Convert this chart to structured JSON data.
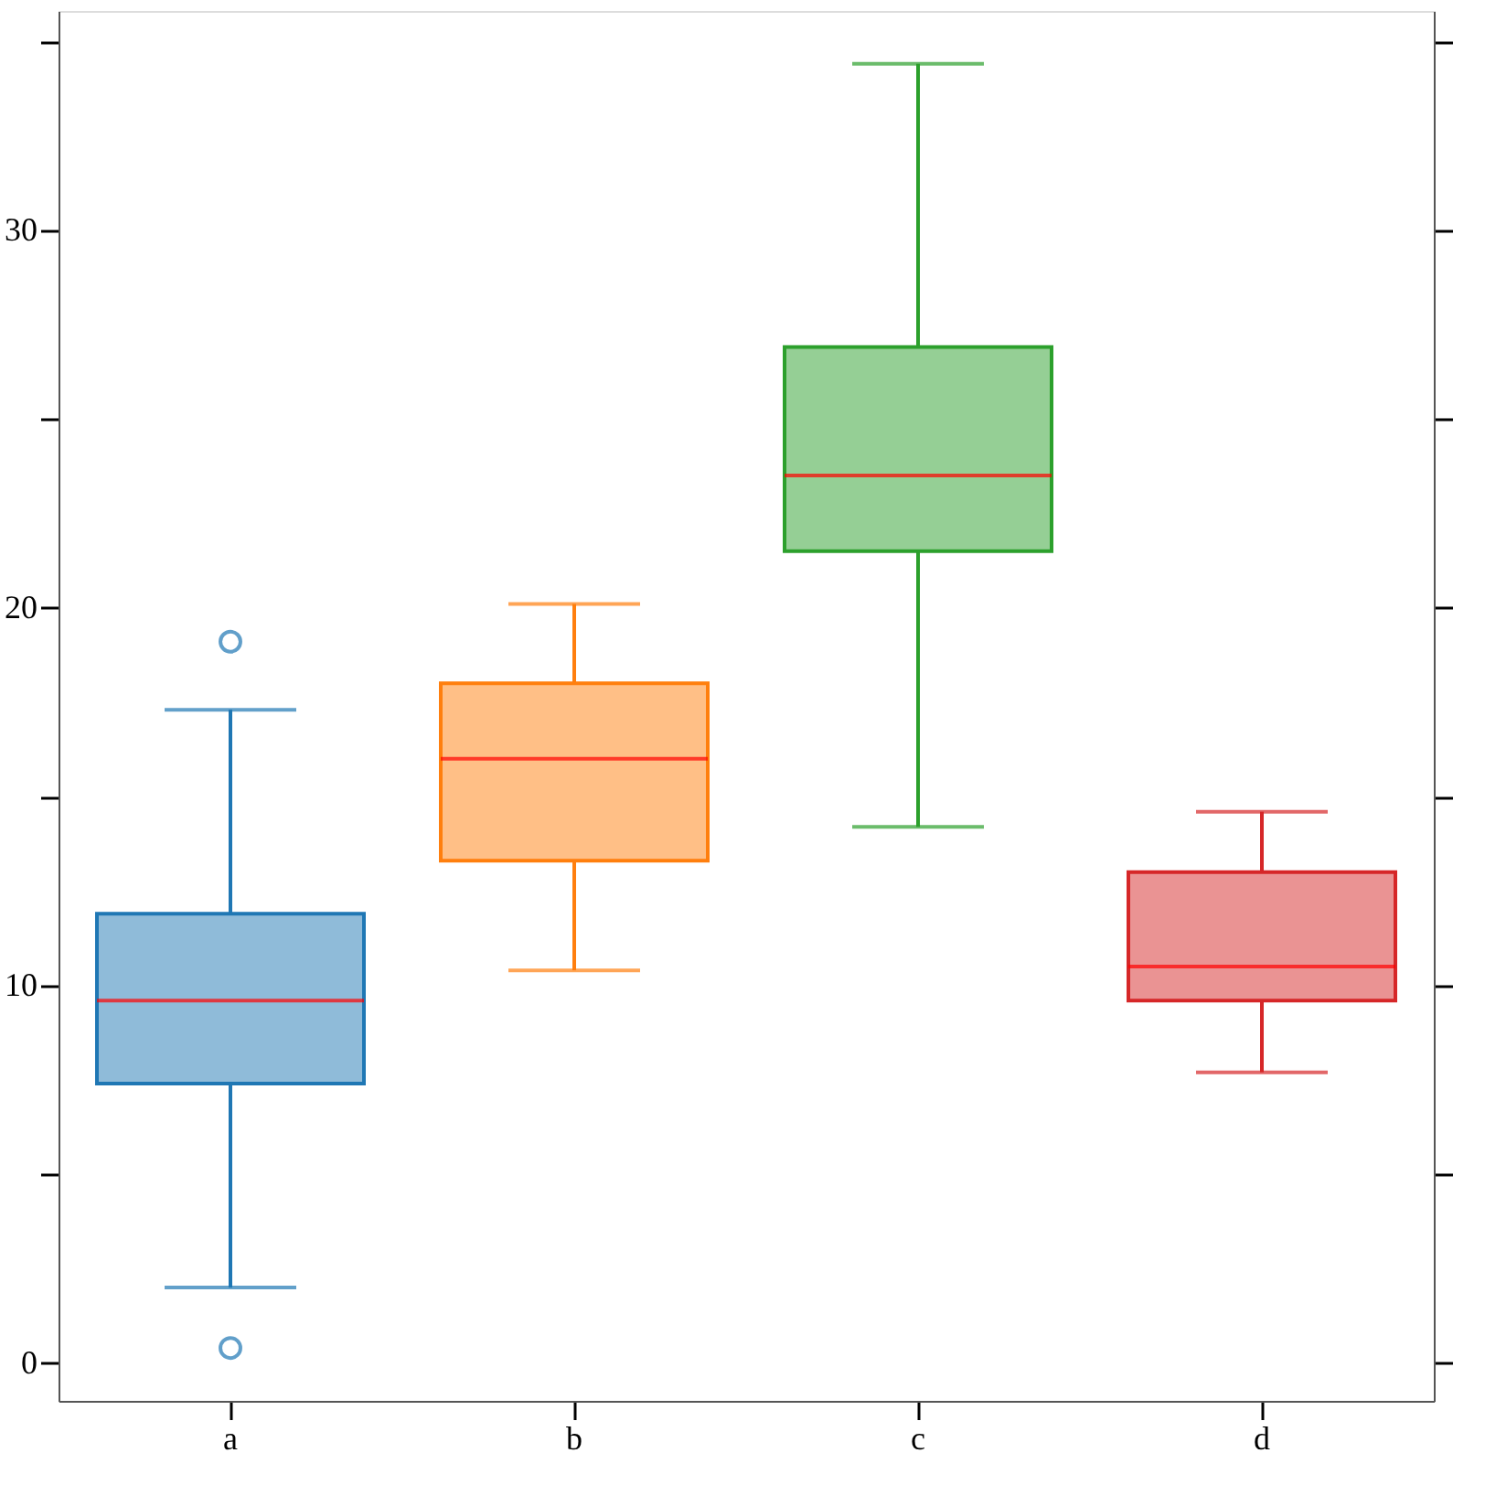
{
  "chart_data": {
    "type": "box",
    "categories": [
      "a",
      "b",
      "c",
      "d"
    ],
    "colors": [
      "#1f77b4",
      "#ff7f0e",
      "#2ca02c",
      "#d62728"
    ],
    "boxes": [
      {
        "low": 2.0,
        "q1": 7.4,
        "median": 9.6,
        "q3": 11.9,
        "high": 17.3,
        "outliers": [
          19.1,
          0.4
        ]
      },
      {
        "low": 10.4,
        "q1": 13.3,
        "median": 16.0,
        "q3": 18.0,
        "high": 20.1
      },
      {
        "low": 14.2,
        "q1": 21.5,
        "median": 23.5,
        "q3": 26.9,
        "high": 34.4
      },
      {
        "low": 7.7,
        "q1": 9.6,
        "median": 10.5,
        "q3": 13.0,
        "high": 14.6
      }
    ],
    "ylim": [
      -1,
      35.8
    ],
    "yticks": [
      0,
      {
        "value": 5,
        "label": null
      },
      10,
      {
        "value": 15,
        "label": null
      },
      20,
      {
        "value": 25,
        "label": null
      },
      30,
      {
        "value": 35,
        "label": null
      }
    ],
    "grid": false,
    "legend": false
  }
}
